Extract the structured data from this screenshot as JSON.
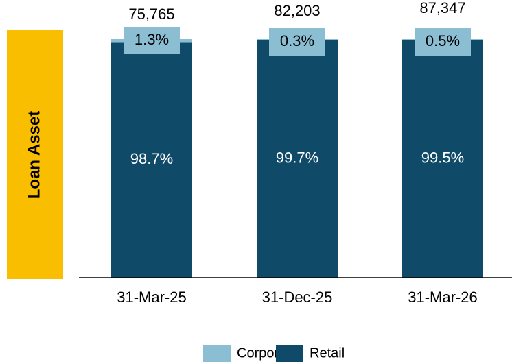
{
  "chart_data": {
    "type": "stacked_bar_100",
    "y_label": "Loan Asset",
    "categories": [
      "31-Mar-25",
      "31-Dec-25",
      "31-Mar-26"
    ],
    "series": [
      {
        "name": "Retail",
        "color": "#0f4a68",
        "values": [
          98.7,
          99.7,
          99.5
        ],
        "value_labels": [
          "98.7%",
          "99.7%",
          "99.5%"
        ]
      },
      {
        "name": "Corporate",
        "color": "#8bbdd3",
        "values": [
          1.3,
          0.3,
          0.5
        ],
        "value_labels": [
          "1.3%",
          "0.3%",
          "0.5%"
        ]
      }
    ],
    "totals": {
      "values": [
        75765,
        82203,
        87347
      ],
      "value_labels": [
        "75,765",
        "82,203",
        "87,347"
      ]
    },
    "ylim": [
      0,
      100
    ],
    "label_box_color": "#f9be00"
  }
}
